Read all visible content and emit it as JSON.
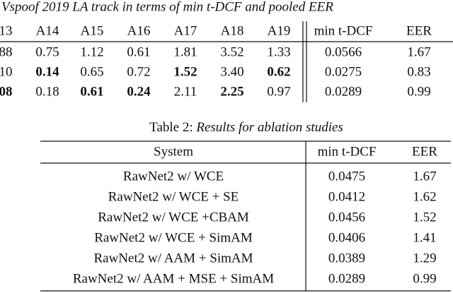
{
  "table1": {
    "caption": "Vspoof 2019 LA track in terms of min t-DCF and pooled EER",
    "header": [
      "13",
      "A14",
      "A15",
      "A16",
      "A17",
      "A18",
      "A19",
      "min t-DCF",
      "EER"
    ],
    "rows": [
      [
        "88",
        "0.75",
        "1.12",
        "0.61",
        "1.81",
        "3.52",
        "1.33",
        "0.0566",
        "1.67"
      ],
      [
        "10",
        "0.14",
        "0.65",
        "0.72",
        "1.52",
        "3.40",
        "0.62",
        "0.0275",
        "0.83"
      ],
      [
        "08",
        "0.18",
        "0.61",
        "0.24",
        "2.11",
        "2.25",
        "0.97",
        "0.0289",
        "0.99"
      ]
    ],
    "bold_cells": [
      [
        1,
        1
      ],
      [
        1,
        4
      ],
      [
        1,
        6
      ],
      [
        2,
        0
      ],
      [
        2,
        2
      ],
      [
        2,
        3
      ],
      [
        2,
        5
      ]
    ]
  },
  "table2": {
    "caption_label": "Table 2:",
    "caption_text": "Results for ablation studies",
    "header": [
      "System",
      "min t-DCF",
      "EER"
    ],
    "rows": [
      [
        "RawNet2 w/ WCE",
        "0.0475",
        "1.67"
      ],
      [
        "RawNet2 w/ WCE + SE",
        "0.0412",
        "1.62"
      ],
      [
        "RawNet2 w/ WCE +CBAM",
        "0.0456",
        "1.52"
      ],
      [
        "RawNet2 w/ WCE + SimAM",
        "0.0406",
        "1.41"
      ],
      [
        "RawNet2 w/ AAM + SimAM",
        "0.0389",
        "1.29"
      ],
      [
        "RawNet2 w/ AAM + MSE + SimAM",
        "0.0289",
        "0.99"
      ]
    ]
  }
}
